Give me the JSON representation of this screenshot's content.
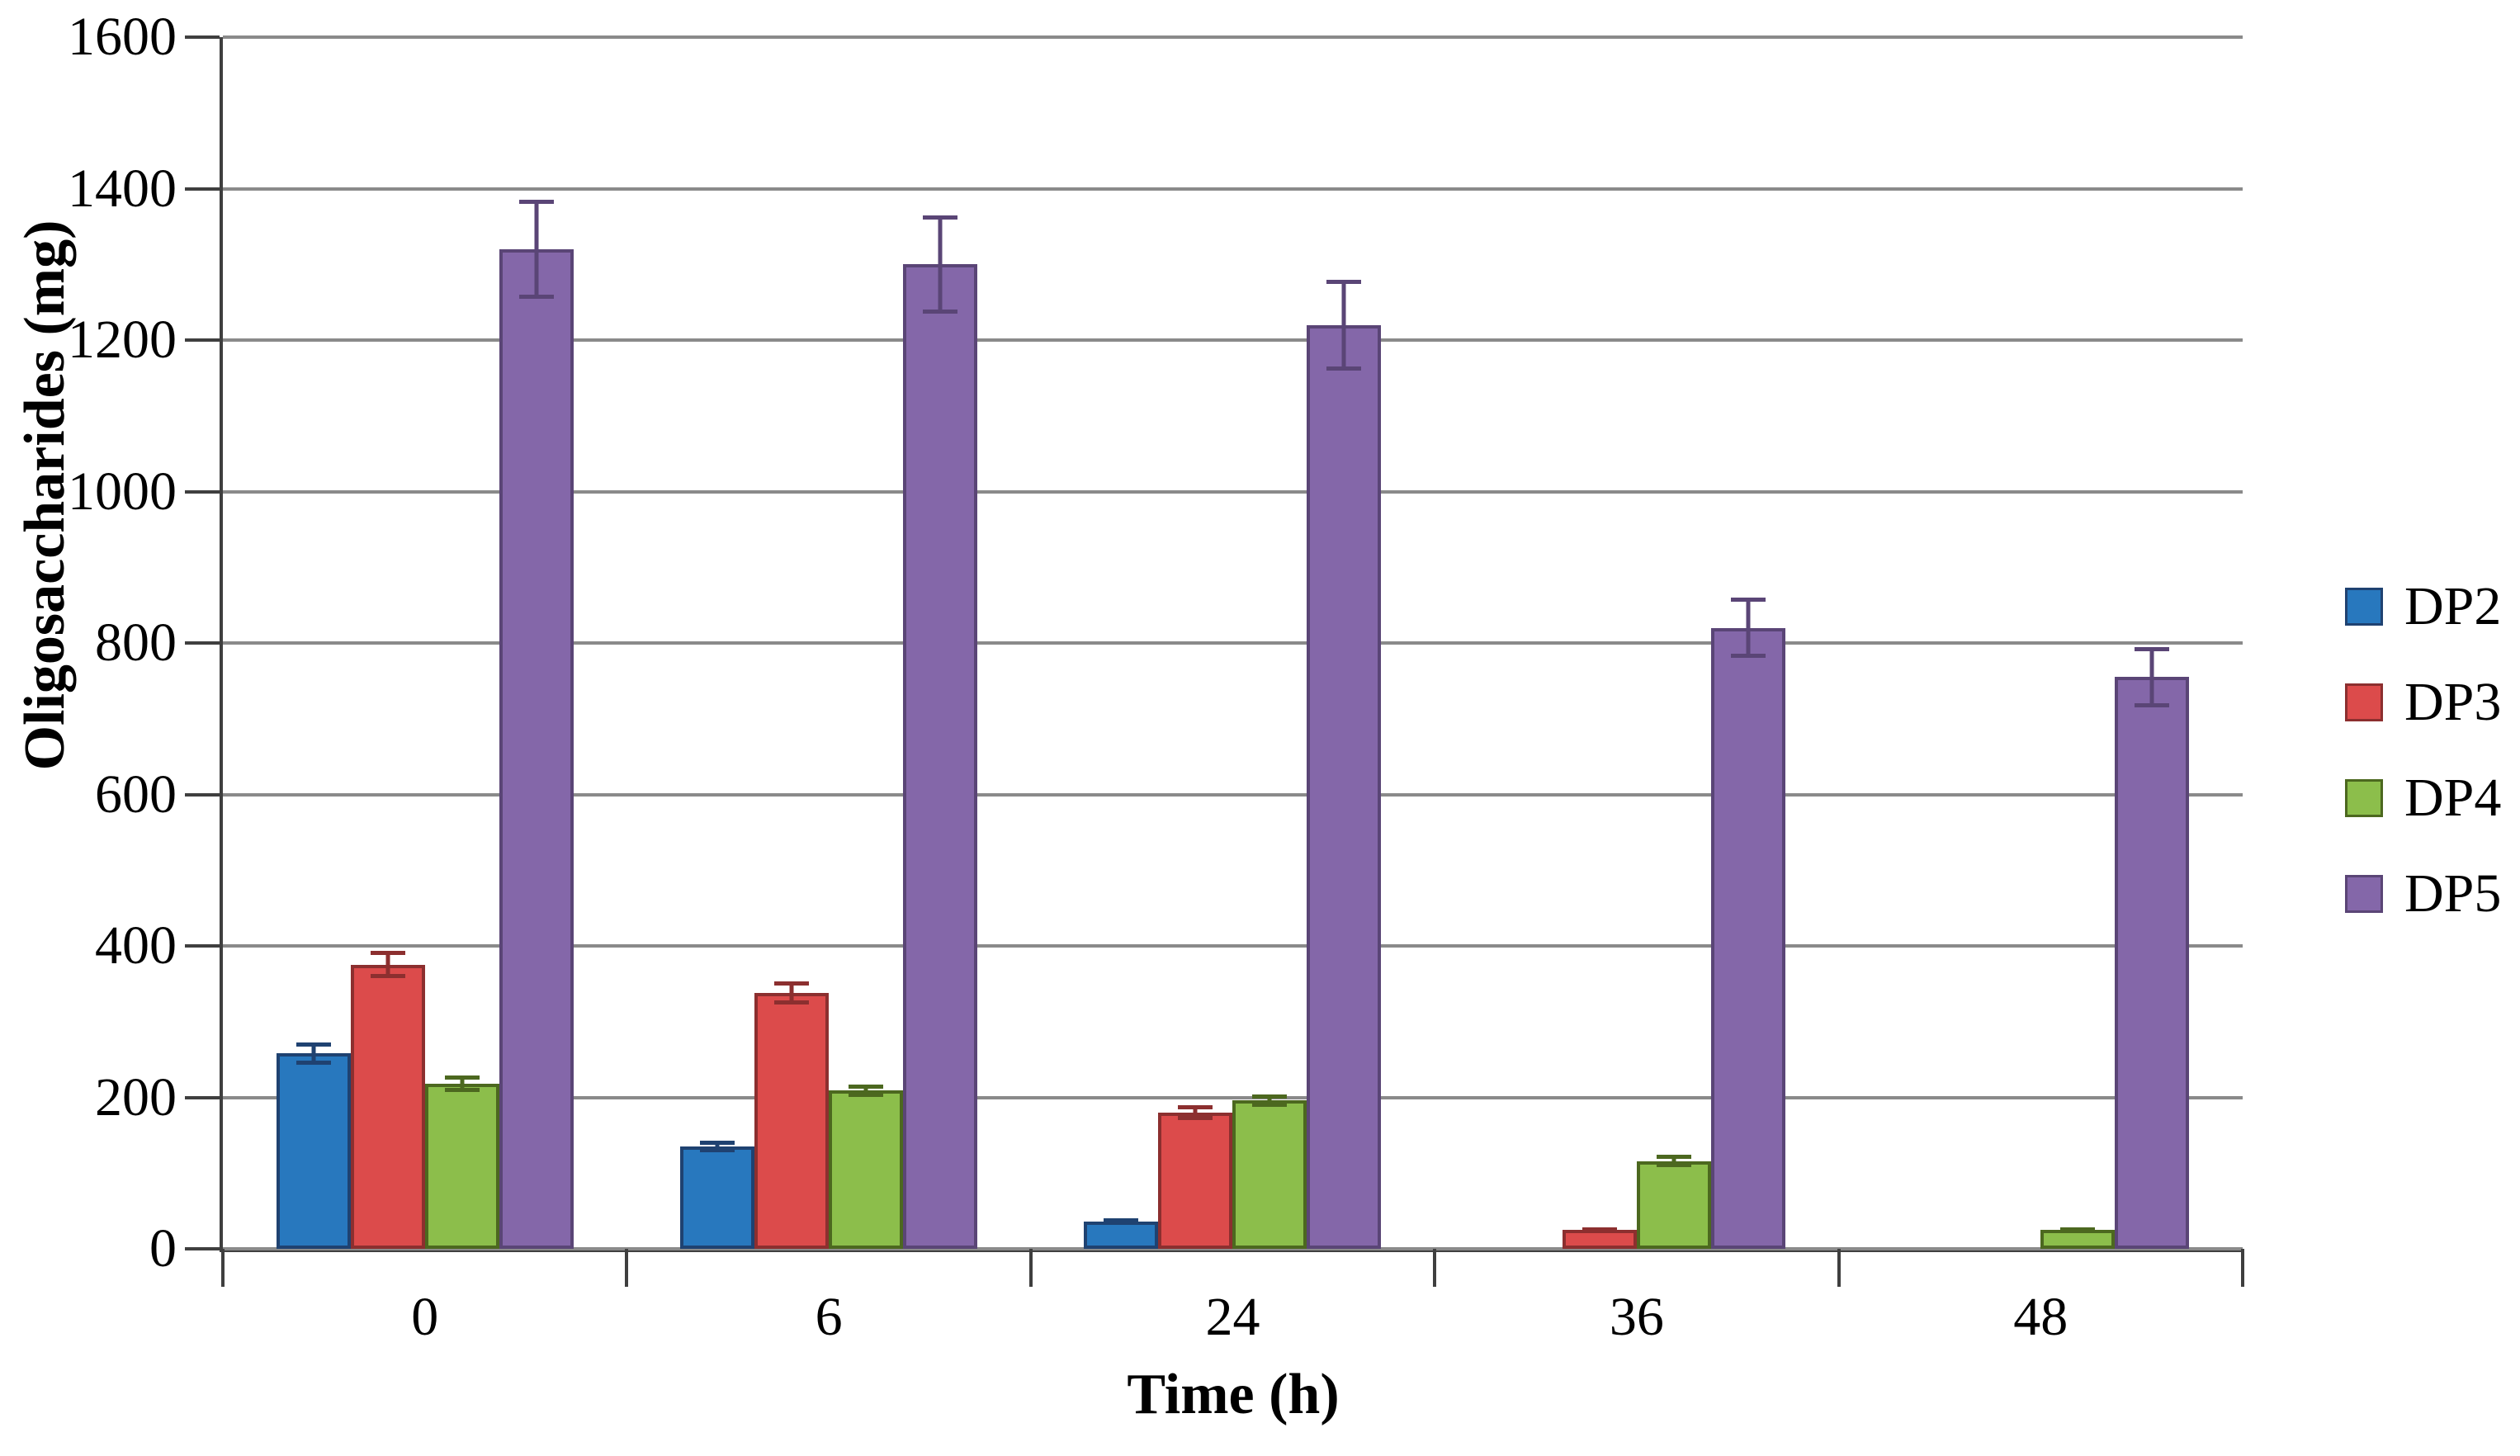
{
  "chart_data": {
    "type": "bar",
    "title": "",
    "xlabel": "Time (h)",
    "ylabel": "Oligosaccharides (mg)",
    "categories": [
      "0",
      "6",
      "24",
      "36",
      "48"
    ],
    "series": [
      {
        "name": "DP2",
        "color": "#2878be",
        "border_color": "#1f4271",
        "values": [
          258,
          135,
          36,
          0,
          0
        ],
        "errors": [
          15,
          8,
          4,
          0,
          0
        ]
      },
      {
        "name": "DP3",
        "color": "#dc4b4b",
        "border_color": "#8c2f2f",
        "values": [
          375,
          338,
          180,
          25,
          0
        ],
        "errors": [
          18,
          15,
          10,
          3,
          0
        ]
      },
      {
        "name": "DP4",
        "color": "#8cbe4b",
        "border_color": "#4c681f",
        "values": [
          218,
          209,
          196,
          116,
          25
        ],
        "errors": [
          11,
          8,
          8,
          8,
          3
        ]
      },
      {
        "name": "DP5",
        "color": "#8467a9",
        "border_color": "#5a4576",
        "values": [
          1320,
          1300,
          1220,
          820,
          755
        ],
        "errors": [
          65,
          65,
          60,
          40,
          40
        ]
      }
    ],
    "ylim": [
      0,
      1600
    ],
    "ytick_step": 200,
    "yticks": [
      0,
      200,
      400,
      600,
      800,
      1000,
      1200,
      1400,
      1600
    ],
    "grid": true,
    "legend_position": "right",
    "colors": {
      "gridline": "#8a8a8a",
      "axis": "#3f3f3f",
      "background": "#ffffff",
      "text": "#000000"
    }
  }
}
